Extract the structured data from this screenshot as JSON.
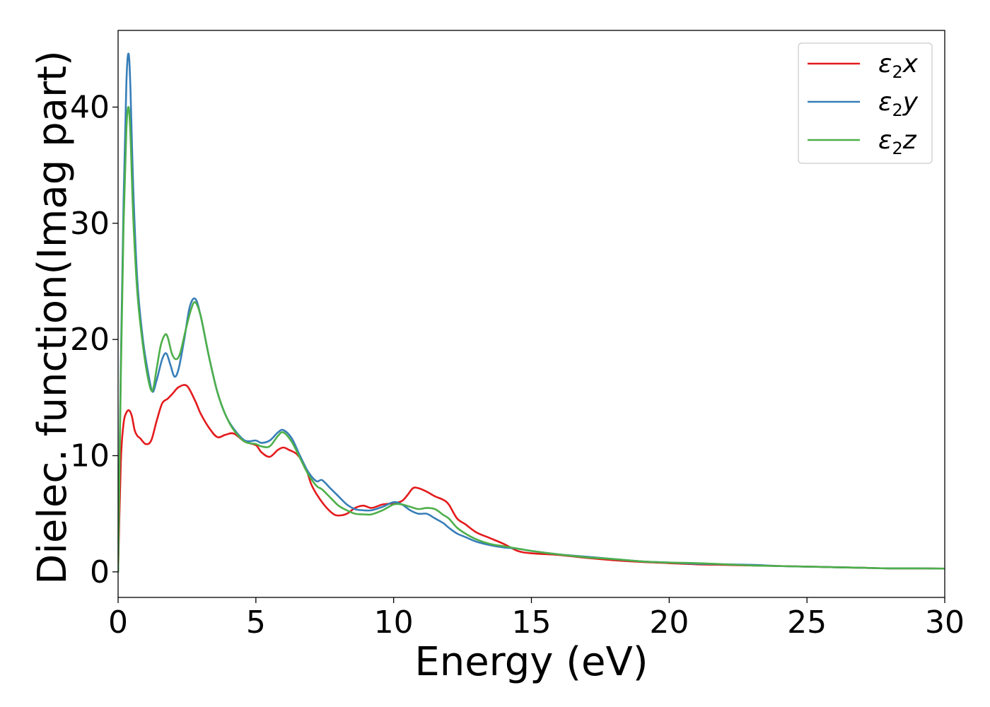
{
  "chart_data": {
    "type": "line",
    "title": "",
    "xlabel": "Energy (eV)",
    "ylabel": "Dielec. function(Imag part)",
    "xlim": [
      0,
      30
    ],
    "ylim": [
      -2.2,
      46.6
    ],
    "xticks": [
      0,
      5,
      10,
      15,
      20,
      25,
      30
    ],
    "yticks": [
      0,
      10,
      20,
      30,
      40
    ],
    "grid": false,
    "legend_position": "top-right",
    "series": [
      {
        "name": "ε2x",
        "legend": {
          "base": "ε",
          "sub": "2",
          "suffix": "x"
        },
        "color": "#e41a1c",
        "x": [
          0,
          0.1,
          0.2,
          0.3,
          0.4,
          0.5,
          0.6,
          0.7,
          0.8,
          1.0,
          1.2,
          1.4,
          1.6,
          1.8,
          2.0,
          2.2,
          2.5,
          2.8,
          3.0,
          3.3,
          3.6,
          3.9,
          4.2,
          4.6,
          5.0,
          5.2,
          5.5,
          5.8,
          6.0,
          6.2,
          6.5,
          6.8,
          7.0,
          7.2,
          7.5,
          7.8,
          8.0,
          8.3,
          8.6,
          8.9,
          9.2,
          9.6,
          10.0,
          10.3,
          10.5,
          10.7,
          10.9,
          11.2,
          11.5,
          11.8,
          12.0,
          12.3,
          12.6,
          13.0,
          13.5,
          14.0,
          14.5,
          15.0,
          16.0,
          17.0,
          18.0,
          19.0,
          20.0,
          21.0,
          22.0,
          23.0,
          24.0,
          25.0,
          26.0,
          27.0,
          28.0,
          29.0,
          30.0
        ],
        "y": [
          0,
          9.5,
          12.8,
          13.7,
          13.9,
          13.4,
          12.2,
          11.7,
          11.5,
          11.0,
          11.3,
          13.0,
          14.5,
          14.9,
          15.4,
          15.9,
          16.0,
          14.7,
          13.6,
          12.4,
          11.6,
          11.8,
          11.9,
          11.2,
          10.9,
          10.3,
          9.9,
          10.5,
          10.7,
          10.5,
          10.1,
          9.0,
          7.6,
          6.7,
          5.7,
          5.0,
          4.85,
          5.0,
          5.5,
          5.7,
          5.5,
          5.8,
          5.9,
          6.1,
          6.6,
          7.2,
          7.2,
          6.9,
          6.5,
          6.2,
          5.8,
          4.6,
          4.1,
          3.4,
          2.9,
          2.4,
          1.8,
          1.6,
          1.45,
          1.2,
          1.0,
          0.85,
          0.75,
          0.65,
          0.6,
          0.55,
          0.5,
          0.45,
          0.4,
          0.35,
          0.3,
          0.3,
          0.28
        ]
      },
      {
        "name": "ε2y",
        "legend": {
          "base": "ε",
          "sub": "2",
          "suffix": "y"
        },
        "color": "#377eb8",
        "x": [
          0,
          0.1,
          0.2,
          0.3,
          0.38,
          0.45,
          0.55,
          0.7,
          0.9,
          1.1,
          1.25,
          1.4,
          1.6,
          1.75,
          1.9,
          2.05,
          2.2,
          2.4,
          2.6,
          2.8,
          3.0,
          3.3,
          3.6,
          3.9,
          4.2,
          4.6,
          5.0,
          5.2,
          5.5,
          5.8,
          6.0,
          6.3,
          6.6,
          6.9,
          7.2,
          7.4,
          7.7,
          8.0,
          8.3,
          8.6,
          8.9,
          9.2,
          9.6,
          10.0,
          10.3,
          10.6,
          10.9,
          11.2,
          11.5,
          11.8,
          12.0,
          12.3,
          12.6,
          13.0,
          13.5,
          14.0,
          14.5,
          15.0,
          16.0,
          17.0,
          18.0,
          19.0,
          20.0,
          21.0,
          22.0,
          23.0,
          24.0,
          25.0,
          26.0,
          27.0,
          28.0,
          29.0,
          30.0
        ],
        "y": [
          0,
          18.0,
          32.0,
          42.0,
          44.6,
          41.5,
          33.0,
          25.0,
          20.0,
          17.0,
          15.5,
          16.5,
          18.3,
          18.8,
          17.8,
          16.8,
          17.5,
          20.0,
          22.8,
          23.5,
          22.0,
          18.5,
          15.5,
          13.5,
          12.3,
          11.3,
          11.3,
          11.1,
          11.3,
          12.0,
          12.2,
          11.5,
          10.0,
          8.6,
          7.8,
          7.9,
          7.2,
          6.5,
          5.8,
          5.4,
          5.3,
          5.3,
          5.6,
          6.0,
          5.8,
          5.3,
          5.0,
          5.0,
          4.6,
          4.2,
          3.8,
          3.3,
          3.0,
          2.6,
          2.3,
          2.1,
          2.0,
          1.8,
          1.5,
          1.3,
          1.1,
          0.9,
          0.8,
          0.7,
          0.65,
          0.6,
          0.5,
          0.45,
          0.4,
          0.35,
          0.3,
          0.3,
          0.28
        ]
      },
      {
        "name": "ε2z",
        "legend": {
          "base": "ε",
          "sub": "2",
          "suffix": "z"
        },
        "color": "#4daf4a",
        "x": [
          0,
          0.1,
          0.2,
          0.3,
          0.38,
          0.45,
          0.55,
          0.7,
          0.9,
          1.1,
          1.25,
          1.4,
          1.55,
          1.7,
          1.8,
          1.95,
          2.1,
          2.25,
          2.45,
          2.65,
          2.8,
          3.0,
          3.3,
          3.6,
          3.9,
          4.2,
          4.6,
          5.0,
          5.2,
          5.5,
          5.8,
          6.0,
          6.3,
          6.6,
          6.9,
          7.2,
          7.4,
          7.7,
          8.0,
          8.3,
          8.6,
          8.9,
          9.2,
          9.6,
          10.0,
          10.3,
          10.6,
          10.9,
          11.2,
          11.5,
          11.8,
          12.0,
          12.3,
          12.6,
          13.0,
          13.5,
          14.0,
          14.5,
          15.0,
          16.0,
          17.0,
          18.0,
          19.0,
          20.0,
          21.0,
          22.0,
          23.0,
          24.0,
          25.0,
          26.0,
          27.0,
          28.0,
          29.0,
          30.0
        ],
        "y": [
          0,
          17.0,
          30.0,
          38.0,
          40.0,
          37.5,
          30.5,
          24.0,
          19.5,
          16.5,
          15.6,
          17.5,
          19.5,
          20.4,
          20.2,
          18.8,
          18.3,
          18.8,
          20.8,
          22.6,
          23.2,
          22.0,
          18.5,
          15.5,
          13.5,
          12.2,
          11.2,
          11.0,
          10.8,
          10.8,
          11.7,
          12.0,
          11.2,
          9.8,
          8.4,
          7.4,
          7.1,
          6.4,
          5.7,
          5.3,
          5.0,
          4.95,
          4.95,
          5.3,
          5.8,
          5.8,
          5.6,
          5.4,
          5.5,
          5.4,
          4.9,
          4.6,
          3.8,
          3.3,
          2.8,
          2.4,
          2.2,
          2.0,
          1.8,
          1.5,
          1.25,
          1.1,
          0.9,
          0.8,
          0.75,
          0.65,
          0.55,
          0.5,
          0.45,
          0.4,
          0.35,
          0.3,
          0.3,
          0.28
        ]
      }
    ]
  }
}
